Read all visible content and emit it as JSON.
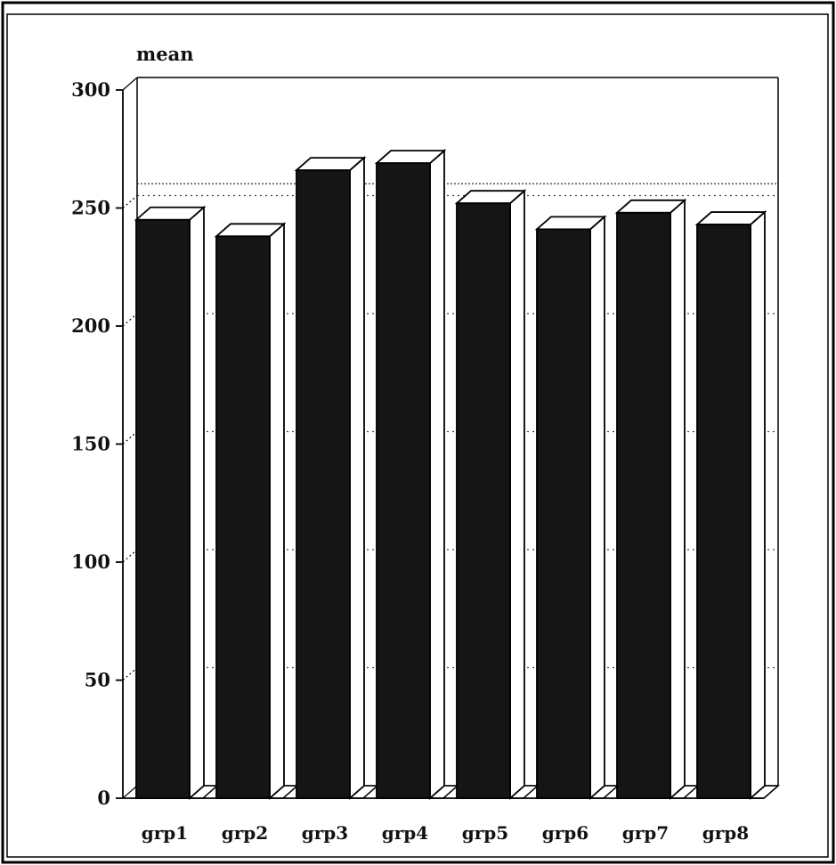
{
  "chart_data": {
    "type": "bar",
    "title": "",
    "ylabel": "mean",
    "xlabel": "",
    "categories": [
      "grp1",
      "grp2",
      "grp3",
      "grp4",
      "grp5",
      "grp6",
      "grp7",
      "grp8"
    ],
    "values": [
      245,
      238,
      266,
      269,
      252,
      241,
      248,
      243
    ],
    "ylim": [
      0,
      300
    ],
    "yticks": [
      0,
      50,
      100,
      150,
      200,
      250,
      300
    ],
    "reference_line": 255,
    "grid": true,
    "style": "3d",
    "colors": {
      "bar_front": "#151515",
      "bar_side": "#ffffff",
      "outline": "#000000",
      "grid": "#444444"
    }
  }
}
